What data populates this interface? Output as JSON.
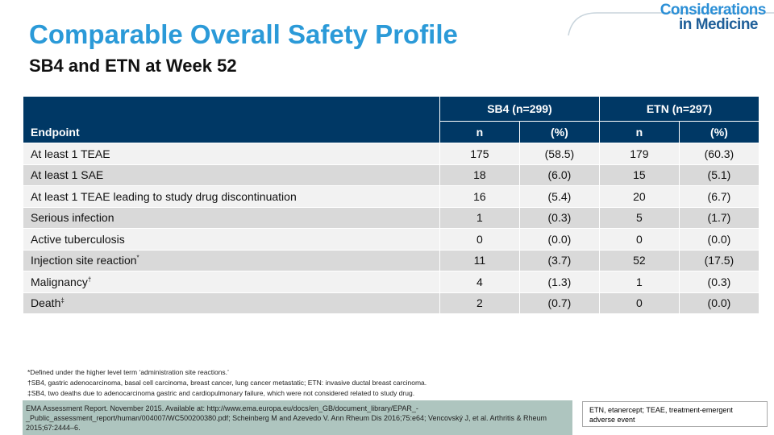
{
  "header": {
    "title": "Comparable Overall Safety Profile",
    "subtitle": "SB4 and ETN at Week 52",
    "logo_line1": "Considerations",
    "logo_line2": "in Medicine"
  },
  "table": {
    "endpoint_header": "Endpoint",
    "groups": [
      "SB4 (n=299)",
      "ETN (n=297)"
    ],
    "subheaders": [
      "n",
      "(%)",
      "n",
      "(%)"
    ],
    "rows": [
      {
        "endpoint": "At least 1 TEAE",
        "note": null,
        "cells": [
          "175",
          "(58.5)",
          "179",
          "(60.3)"
        ]
      },
      {
        "endpoint": "At least 1 SAE",
        "note": null,
        "cells": [
          "18",
          "(6.0)",
          "15",
          "(5.1)"
        ]
      },
      {
        "endpoint": "At least 1 TEAE leading to study drug discontinuation",
        "note": null,
        "cells": [
          "16",
          "(5.4)",
          "20",
          "(6.7)"
        ]
      },
      {
        "endpoint": "Serious infection",
        "note": null,
        "cells": [
          "1",
          "(0.3)",
          "5",
          "(1.7)"
        ]
      },
      {
        "endpoint": "Active tuberculosis",
        "note": null,
        "cells": [
          "0",
          "(0.0)",
          "0",
          "(0.0)"
        ]
      },
      {
        "endpoint": "Injection  site reaction",
        "note": "*",
        "cells": [
          "11",
          "(3.7)",
          "52",
          "(17.5)"
        ]
      },
      {
        "endpoint": "Malignancy",
        "note": "†",
        "cells": [
          "4",
          "(1.3)",
          "1",
          "(0.3)"
        ]
      },
      {
        "endpoint": "Death",
        "note": "‡",
        "cells": [
          "2",
          "(0.7)",
          "0",
          "(0.0)"
        ]
      }
    ]
  },
  "footnotes": [
    "*Defined under the higher level term ‘administration site reactions.’",
    "†SB4, gastric adenocarcinoma, basal cell carcinoma, breast cancer, lung cancer metastatic;  ETN:  invasive ductal breast carcinoma.",
    "‡SB4, two deaths due to adenocarcinoma gastric and cardiopulmonary failure, which were not considered  related to study drug."
  ],
  "references": "EMA  Assessment Report. November 2015. Available at: http://www.ema.europa.eu/docs/en_GB/document_library/EPAR_-_Public_assessment_report/human/004007/WC500200380.pdf; Scheinberg M  and Azevedo V. Ann Rheum Dis 2016;75:e64; Vencovský J, et al. Arthritis & Rheum 2015;67:2444–6.",
  "abbreviations": "ETN,  etanercept; TEAE,  treatment-emergent adverse event"
}
